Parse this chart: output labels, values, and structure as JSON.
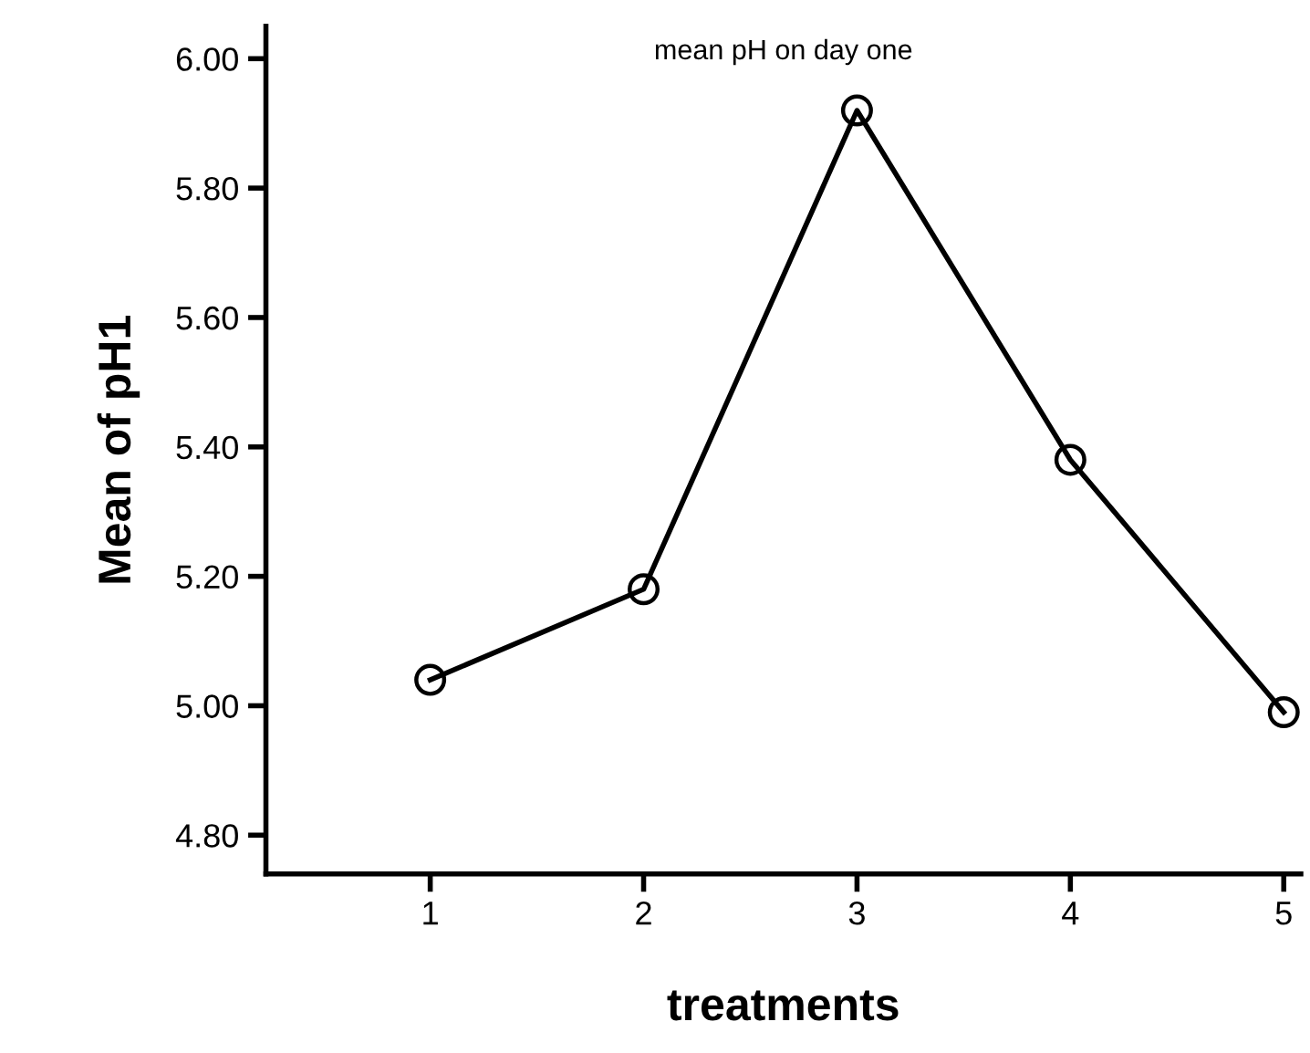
{
  "chart_data": {
    "type": "line",
    "title": "mean pH on day one",
    "xlabel": "treatments",
    "ylabel": "Mean of pH1",
    "categories": [
      "1",
      "2",
      "3",
      "4",
      "5"
    ],
    "series": [
      {
        "color": "#000000",
        "values": [
          5.04,
          5.18,
          5.92,
          5.38,
          4.99
        ]
      }
    ],
    "ylim": [
      4.74,
      6.05
    ],
    "yticks": [
      {
        "value": 4.8,
        "label": "4.80"
      },
      {
        "value": 5.0,
        "label": "5.00"
      },
      {
        "value": 5.2,
        "label": "5.20"
      },
      {
        "value": 5.4,
        "label": "5.40"
      },
      {
        "value": 5.6,
        "label": "5.60"
      },
      {
        "value": 5.8,
        "label": "5.80"
      },
      {
        "value": 6.0,
        "label": "6.00"
      }
    ],
    "grid": false,
    "legend": false,
    "marker": "circle",
    "line_style": "solid"
  }
}
